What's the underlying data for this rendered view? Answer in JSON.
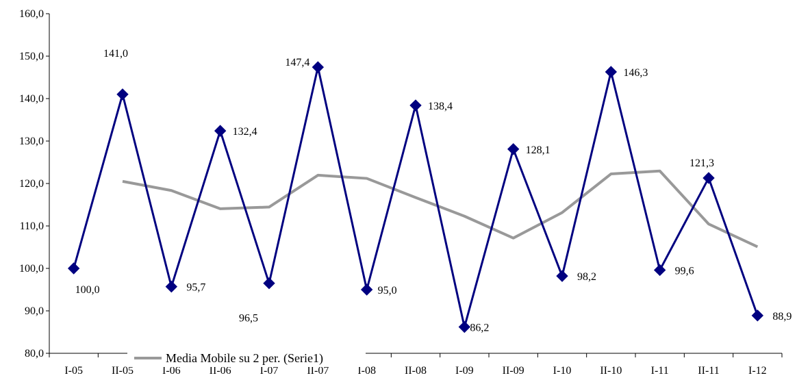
{
  "chart_data": {
    "type": "line",
    "categories": [
      "I-05",
      "II-05",
      "I-06",
      "II-06",
      "I-07",
      "II-07",
      "I-08",
      "II-08",
      "I-09",
      "II-09",
      "I-10",
      "II-10",
      "I-11",
      "II-11",
      "I-12"
    ],
    "ylim": [
      80,
      160
    ],
    "yticks": [
      "80,0",
      "90,0",
      "100,0",
      "110,0",
      "120,0",
      "130,0",
      "140,0",
      "150,0",
      "160,0"
    ],
    "grid": false,
    "legend_position": "bottom-left",
    "series": [
      {
        "values": [
          100.0,
          141.0,
          95.7,
          132.4,
          96.5,
          147.4,
          95.0,
          138.4,
          86.2,
          128.1,
          98.2,
          146.3,
          99.6,
          121.3,
          88.9
        ],
        "data_labels": [
          "100,0",
          "141,0",
          "95,7",
          "132,4",
          "96,5",
          "147,4",
          "95,0",
          "138,4",
          "86,2",
          "128,1",
          "98,2",
          "146,3",
          "99,6",
          "121,3",
          "88,9"
        ],
        "color": "#000080",
        "marker": "diamond"
      },
      {
        "name": "Media Mobile su 2 per. (Serie1)",
        "values": [
          null,
          120.5,
          118.35,
          114.05,
          114.45,
          121.95,
          121.2,
          116.7,
          112.3,
          107.15,
          113.15,
          122.25,
          122.95,
          110.45,
          105.1
        ],
        "color": "#999999"
      }
    ]
  }
}
